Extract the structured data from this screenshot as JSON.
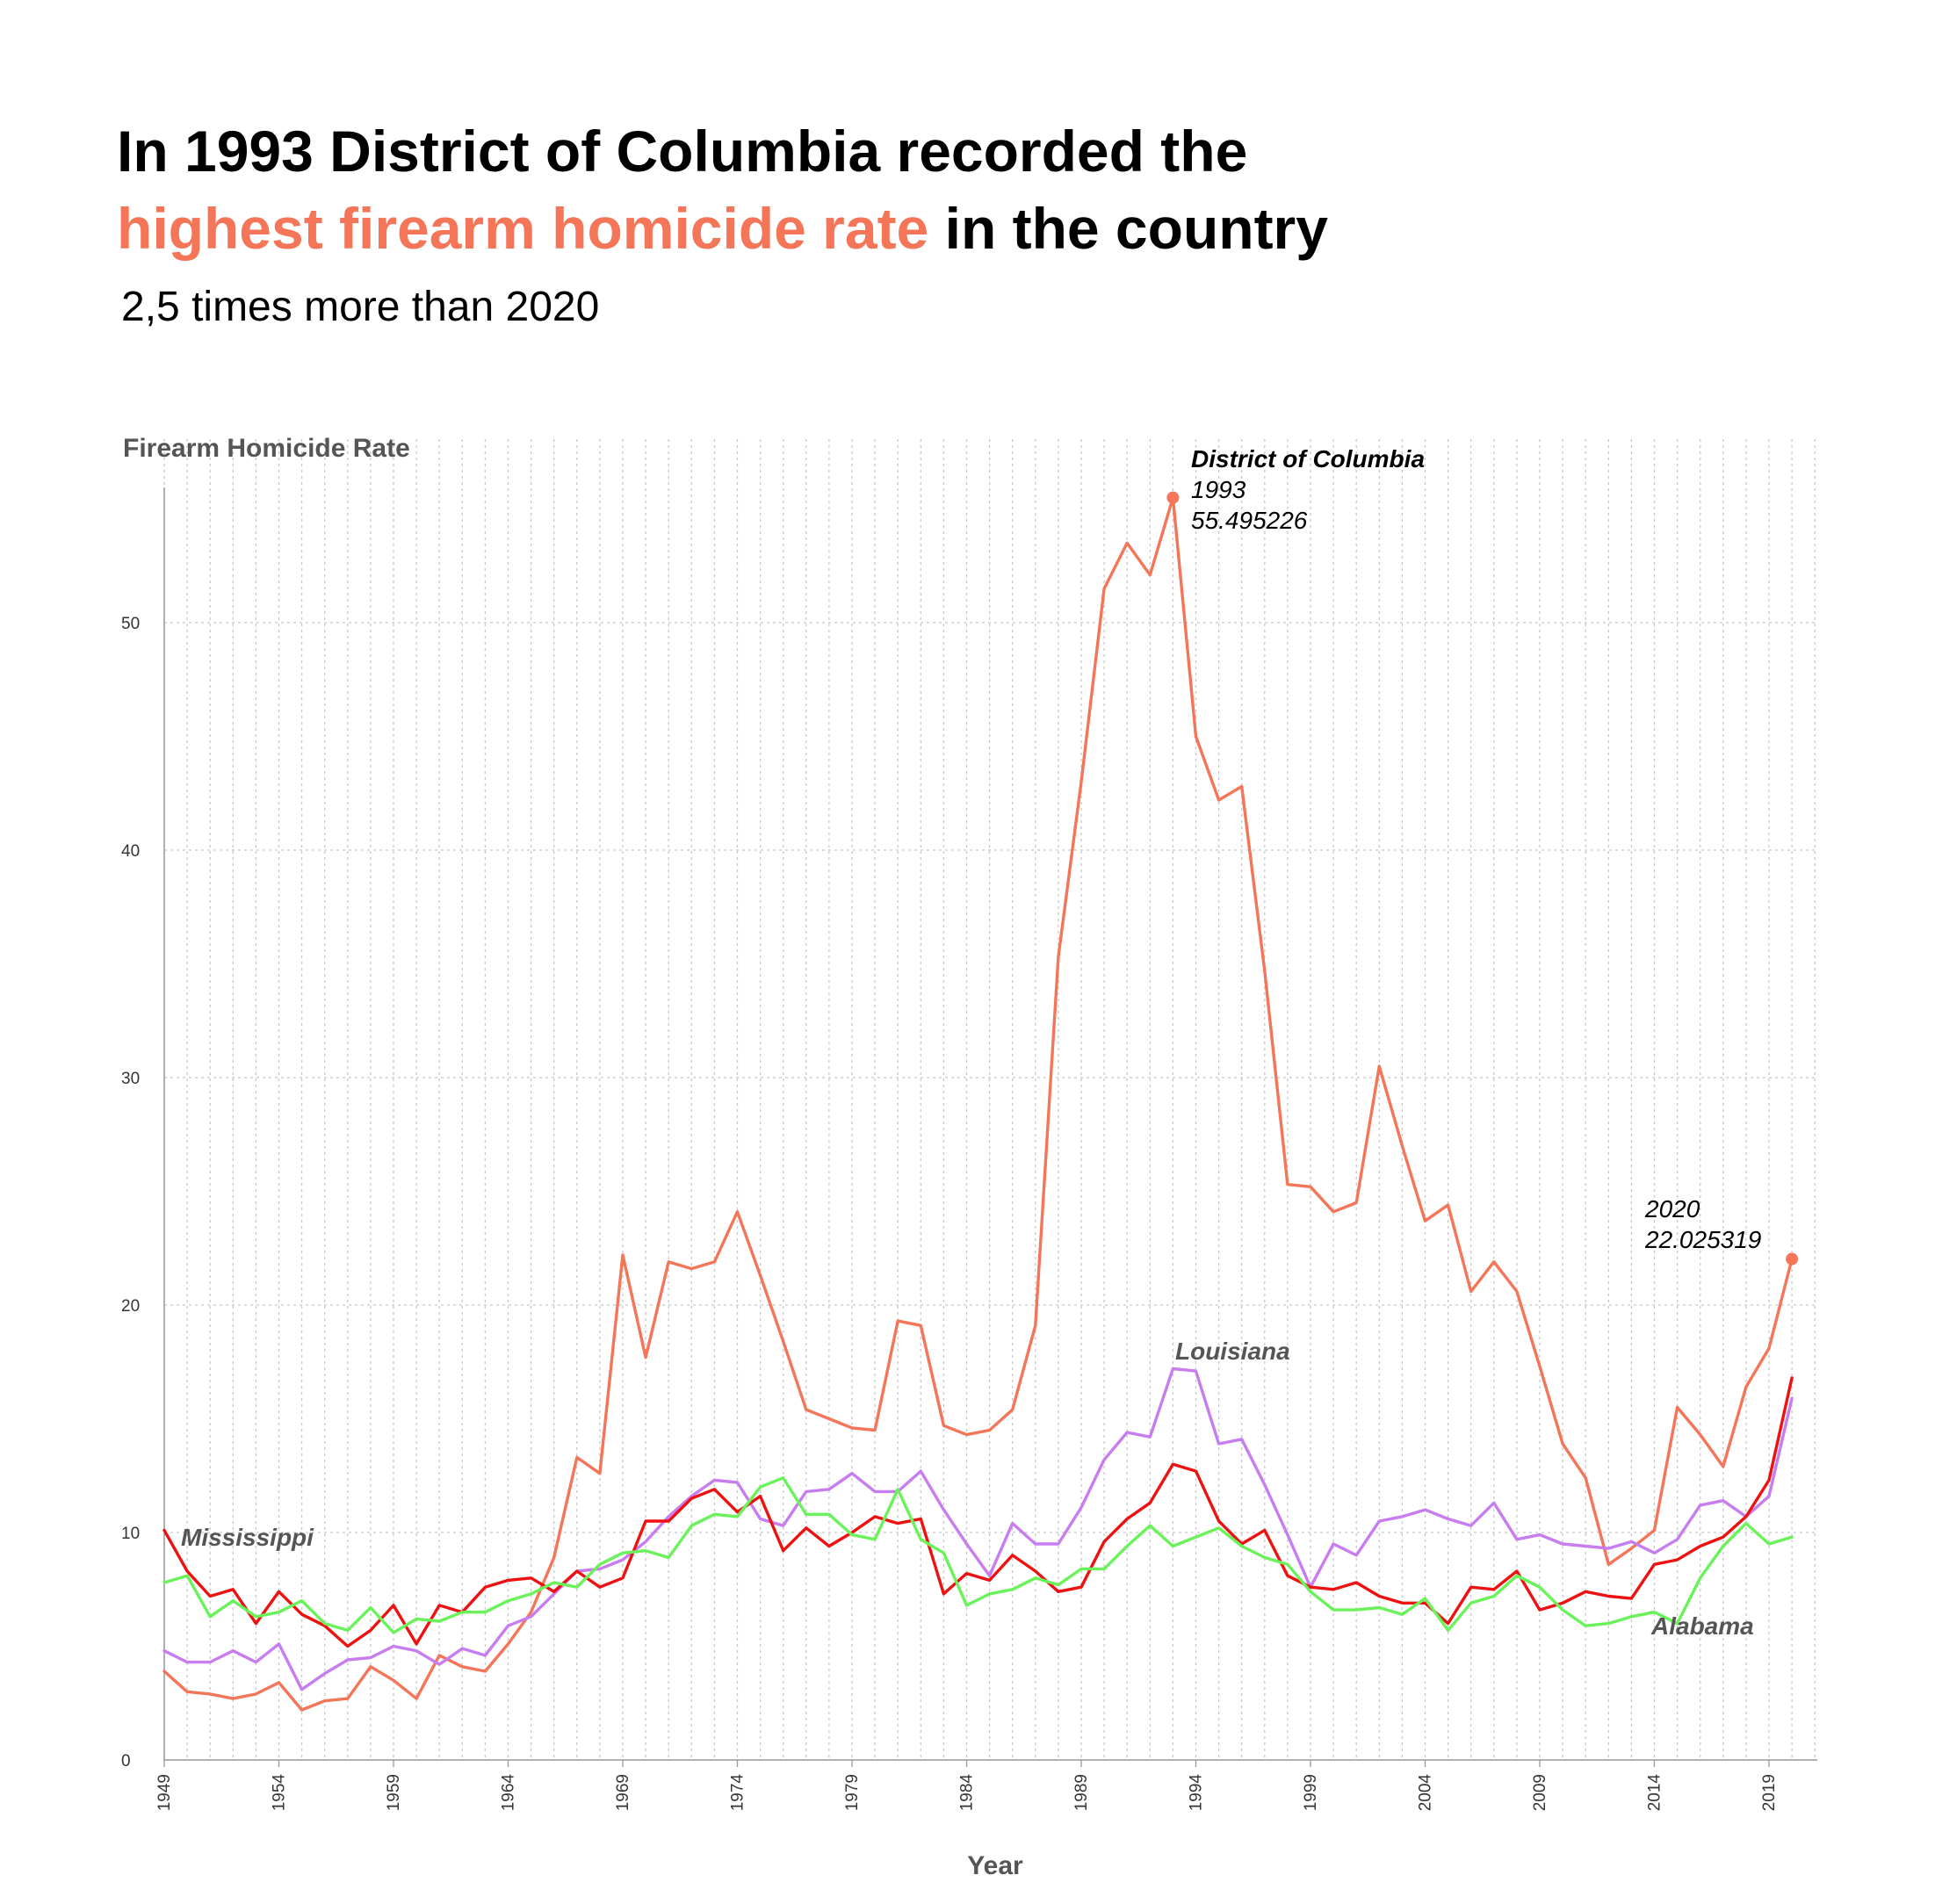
{
  "header": {
    "title_line1": "In 1993 District of Columbia recorded the",
    "title_highlight": "highest firearm homicide rate",
    "title_rest": " in the country",
    "subtitle": "2,5 times more than 2020"
  },
  "colors": {
    "highlight": "#f47558",
    "dc": "#f47558",
    "louisiana": "#c77df0",
    "mississippi": "#ee1111",
    "alabama": "#6af25a",
    "grid": "#c8c8c8"
  },
  "chart_data": {
    "type": "line",
    "xlabel": "Year",
    "ylabel": "Firearm Homicide Rate",
    "xlim": [
      1949,
      2020
    ],
    "ylim": [
      0,
      56
    ],
    "y_ticks": [
      0,
      10,
      20,
      30,
      40,
      50
    ],
    "x_ticks": [
      1949,
      1954,
      1959,
      1964,
      1969,
      1974,
      1979,
      1984,
      1989,
      1994,
      1999,
      2004,
      2009,
      2014,
      2019
    ],
    "grid": "dotted vertical per year, horizontal per y tick",
    "x": [
      1949,
      1950,
      1951,
      1952,
      1953,
      1954,
      1955,
      1956,
      1957,
      1958,
      1959,
      1960,
      1961,
      1962,
      1963,
      1964,
      1965,
      1966,
      1967,
      1968,
      1969,
      1970,
      1971,
      1972,
      1973,
      1974,
      1975,
      1976,
      1977,
      1978,
      1979,
      1980,
      1981,
      1982,
      1983,
      1984,
      1985,
      1986,
      1987,
      1988,
      1989,
      1990,
      1991,
      1992,
      1993,
      1994,
      1995,
      1996,
      1997,
      1998,
      1999,
      2000,
      2001,
      2002,
      2003,
      2004,
      2005,
      2006,
      2007,
      2008,
      2009,
      2010,
      2011,
      2012,
      2013,
      2014,
      2015,
      2016,
      2017,
      2018,
      2019,
      2020
    ],
    "series": [
      {
        "key": "dc",
        "values": [
          3.9,
          3.0,
          2.9,
          2.7,
          2.9,
          3.4,
          2.2,
          2.6,
          2.7,
          4.1,
          3.5,
          2.7,
          4.6,
          4.1,
          3.9,
          5.1,
          6.5,
          8.9,
          13.3,
          12.6,
          22.2,
          17.7,
          21.9,
          21.6,
          21.9,
          24.1,
          21.3,
          18.4,
          15.4,
          15.0,
          14.6,
          14.5,
          19.3,
          19.1,
          14.7,
          14.3,
          14.5,
          15.4,
          19.1,
          35.3,
          43.0,
          51.5,
          53.5,
          52.1,
          55.495226,
          45.0,
          42.2,
          42.8,
          34.7,
          25.3,
          25.2,
          24.1,
          24.5,
          30.5,
          27.0,
          23.7,
          24.4,
          20.6,
          21.9,
          20.6,
          17.3,
          13.9,
          12.4,
          8.6,
          9.3,
          10.1,
          15.5,
          14.3,
          12.9,
          16.4,
          18.1,
          22.025319
        ]
      },
      {
        "key": "louisiana",
        "name": "Louisiana",
        "values": [
          4.8,
          4.3,
          4.3,
          4.8,
          4.3,
          5.1,
          3.1,
          3.8,
          4.4,
          4.5,
          5.0,
          4.8,
          4.2,
          4.9,
          4.6,
          5.9,
          6.3,
          7.3,
          8.3,
          8.4,
          8.8,
          9.6,
          10.7,
          11.6,
          12.3,
          12.2,
          10.6,
          10.3,
          11.8,
          11.9,
          12.6,
          11.8,
          11.8,
          12.7,
          11.0,
          9.5,
          8.1,
          10.4,
          9.5,
          9.5,
          11.1,
          13.2,
          14.4,
          14.2,
          17.2,
          17.1,
          13.9,
          14.1,
          12.1,
          9.9,
          7.6,
          9.5,
          9.0,
          10.5,
          10.7,
          11.0,
          10.6,
          10.3,
          11.3,
          9.7,
          9.9,
          9.5,
          9.4,
          9.3,
          9.6,
          9.1,
          9.7,
          11.2,
          11.4,
          10.7,
          11.6,
          15.9
        ]
      },
      {
        "key": "mississippi",
        "name": "Mississippi",
        "values": [
          10.1,
          8.3,
          7.2,
          7.5,
          6.0,
          7.4,
          6.4,
          5.9,
          5.0,
          5.7,
          6.8,
          5.1,
          6.8,
          6.5,
          7.6,
          7.9,
          8.0,
          7.4,
          8.3,
          7.6,
          8.0,
          10.5,
          10.5,
          11.5,
          11.9,
          10.9,
          11.6,
          9.2,
          10.2,
          9.4,
          10.0,
          10.7,
          10.4,
          10.6,
          7.3,
          8.2,
          7.9,
          9.0,
          8.3,
          7.4,
          7.6,
          9.6,
          10.6,
          11.3,
          13.0,
          12.7,
          10.5,
          9.5,
          10.1,
          8.1,
          7.6,
          7.5,
          7.8,
          7.2,
          6.9,
          6.9,
          6.0,
          7.6,
          7.5,
          8.3,
          6.6,
          6.9,
          7.4,
          7.2,
          7.1,
          8.6,
          8.8,
          9.4,
          9.8,
          10.7,
          12.3,
          16.8
        ]
      },
      {
        "key": "alabama",
        "name": "Alabama",
        "values": [
          7.8,
          8.1,
          6.3,
          7.0,
          6.3,
          6.5,
          7.0,
          6.0,
          5.7,
          6.7,
          5.6,
          6.2,
          6.1,
          6.5,
          6.5,
          7.0,
          7.3,
          7.8,
          7.6,
          8.6,
          9.1,
          9.2,
          8.9,
          10.3,
          10.8,
          10.7,
          12.0,
          12.4,
          10.8,
          10.8,
          9.9,
          9.7,
          11.9,
          9.7,
          9.1,
          6.8,
          7.3,
          7.5,
          8.0,
          7.7,
          8.4,
          8.4,
          9.4,
          10.3,
          9.4,
          9.8,
          10.2,
          9.4,
          8.9,
          8.6,
          7.4,
          6.6,
          6.6,
          6.7,
          6.4,
          7.1,
          5.7,
          6.9,
          7.2,
          8.1,
          7.6,
          6.6,
          5.9,
          6.0,
          6.3,
          6.5,
          6.0,
          8.0,
          9.4,
          10.4,
          9.5,
          9.8
        ]
      }
    ],
    "annotations": [
      {
        "key": "dc_peak",
        "series": "dc",
        "x": 1993,
        "y": 55.495226,
        "name": "District of Columbia",
        "year": "1993",
        "value": "55.495226"
      },
      {
        "key": "dc_2020",
        "series": "dc",
        "x": 2020,
        "y": 22.025319,
        "year": "2020",
        "value": "22.025319"
      }
    ]
  }
}
